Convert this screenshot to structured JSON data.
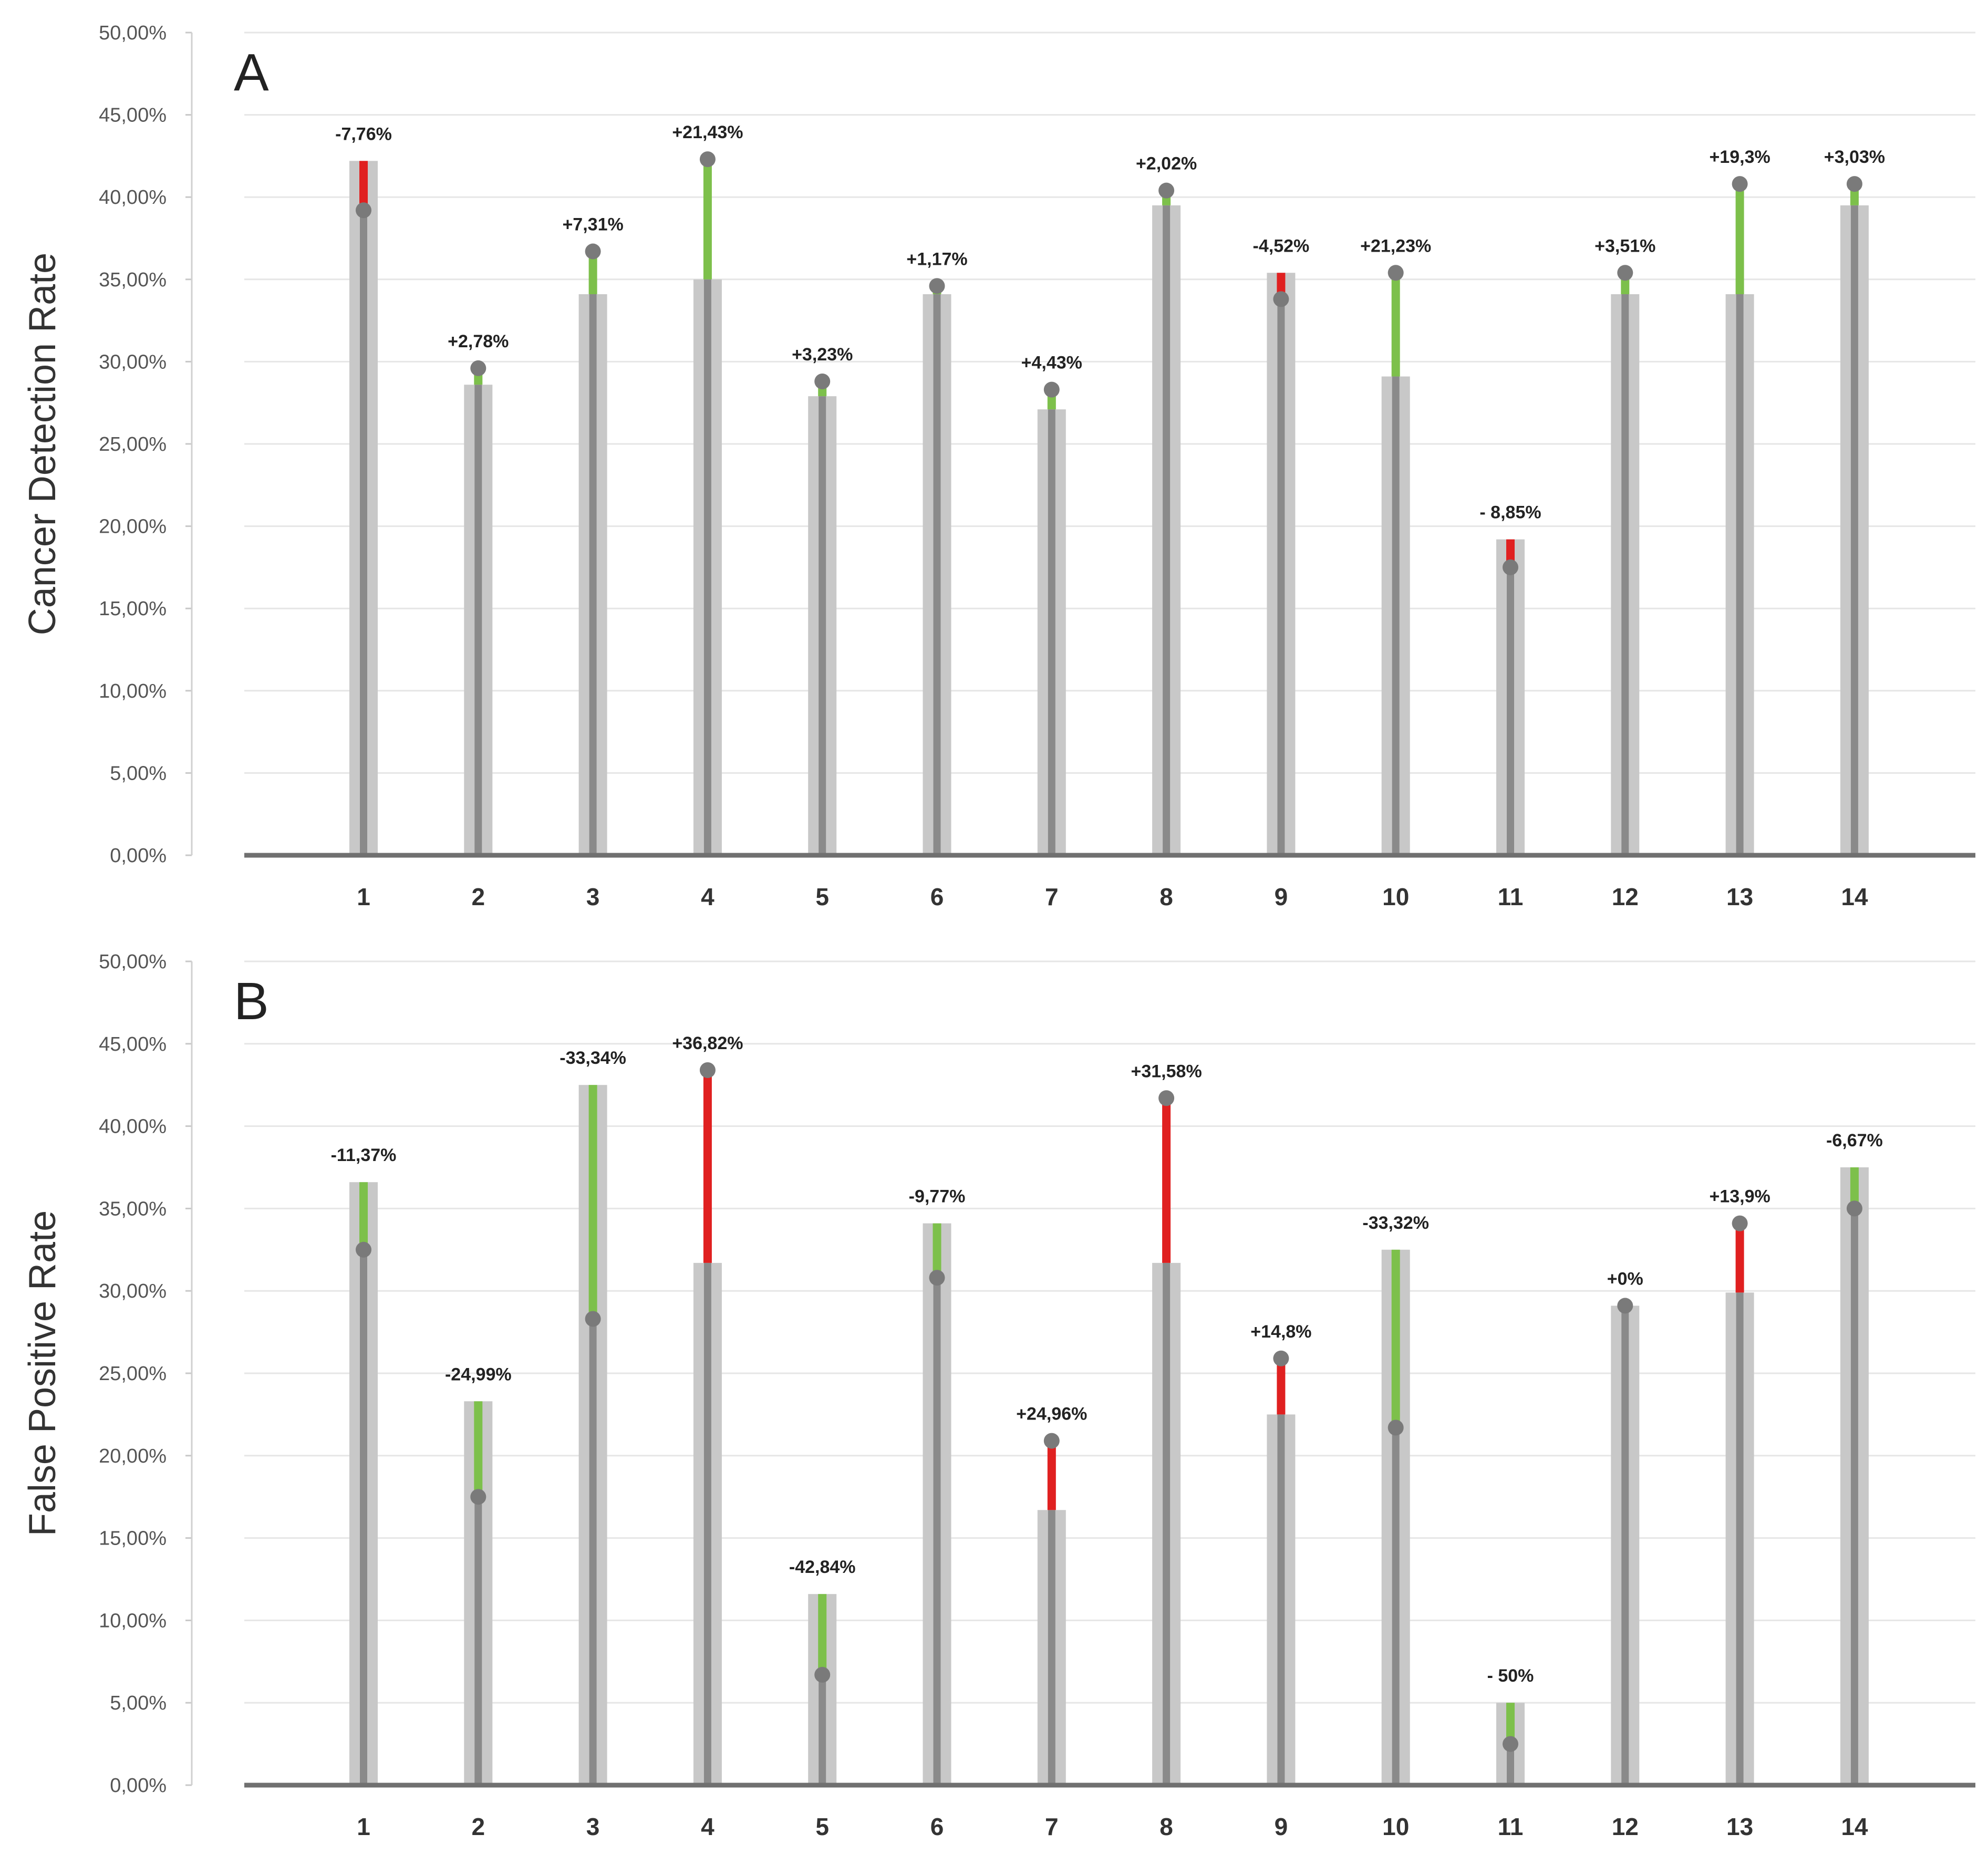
{
  "colors": {
    "increase": "#7dc04b",
    "decrease": "#e02020",
    "original_bar": "#c8c8c8",
    "stem": "#8a8a8a",
    "marker": "#7a7a7a",
    "axis": "#707070",
    "grid": "#e6e6e6"
  },
  "chart_data": [
    {
      "type": "bar",
      "panel_label": "A",
      "ylabel": "Cancer Detection Rate",
      "ylim": [
        0,
        50
      ],
      "y_ticks": [
        "0,00%",
        "5,00%",
        "10,00%",
        "15,00%",
        "20,00%",
        "25,00%",
        "30,00%",
        "35,00%",
        "40,00%",
        "45,00%",
        "50,00%"
      ],
      "categories": [
        "1",
        "2",
        "3",
        "4",
        "5",
        "6",
        "7",
        "8",
        "9",
        "10",
        "11",
        "12",
        "13",
        "14"
      ],
      "series": [
        {
          "name": "",
          "values": [
            42.2,
            28.6,
            34.1,
            35.0,
            27.9,
            34.1,
            27.1,
            39.5,
            35.4,
            29.1,
            19.2,
            34.1,
            34.1,
            39.5
          ]
        },
        {
          "name": "",
          "values": [
            39.2,
            29.6,
            36.7,
            42.3,
            28.8,
            34.6,
            28.3,
            40.4,
            33.8,
            35.4,
            17.5,
            35.4,
            40.8,
            40.8
          ]
        }
      ],
      "change_labels": [
        "-7,76%",
        "+2,78%",
        "+7,31%",
        "+21,43%",
        "+3,23%",
        "+1,17%",
        "+4,43%",
        "+2,02%",
        "-4,52%",
        "+21,23%",
        "- 8,85%",
        "+3,51%",
        "+19,3%",
        "+3,03%"
      ],
      "grid": true
    },
    {
      "type": "bar",
      "panel_label": "B",
      "ylabel": "False Positive Rate",
      "ylim": [
        0,
        50
      ],
      "y_ticks": [
        "0,00%",
        "5,00%",
        "10,00%",
        "15,00%",
        "20,00%",
        "25,00%",
        "30,00%",
        "35,00%",
        "40,00%",
        "45,00%",
        "50,00%"
      ],
      "categories": [
        "1",
        "2",
        "3",
        "4",
        "5",
        "6",
        "7",
        "8",
        "9",
        "10",
        "11",
        "12",
        "13",
        "14"
      ],
      "series": [
        {
          "name": "",
          "values": [
            36.6,
            23.3,
            42.5,
            31.7,
            11.6,
            34.1,
            16.7,
            31.7,
            22.5,
            32.5,
            5.0,
            29.1,
            29.9,
            37.5
          ]
        },
        {
          "name": "",
          "values": [
            32.5,
            17.5,
            28.3,
            43.4,
            6.7,
            30.8,
            20.9,
            41.7,
            25.9,
            21.7,
            2.5,
            29.1,
            34.1,
            35.0
          ]
        }
      ],
      "change_labels": [
        "-11,37%",
        "-24,99%",
        "-33,34%",
        "+36,82%",
        "-42,84%",
        "-9,77%",
        "+24,96%",
        "+31,58%",
        "+14,8%",
        "-33,32%",
        "- 50%",
        "+0%",
        "+13,9%",
        "-6,67%"
      ],
      "grid": true
    }
  ]
}
